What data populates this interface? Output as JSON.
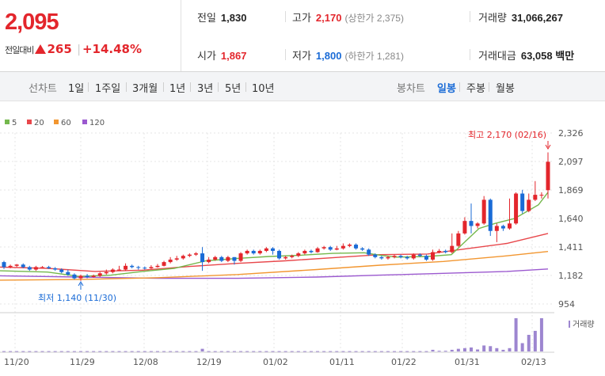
{
  "summary": {
    "price": "2,095",
    "change_label": "전일대비",
    "change_value": "265",
    "change_pct": "+14.48%"
  },
  "stats": {
    "prev_close": {
      "label": "전일",
      "value": "1,830"
    },
    "open": {
      "label": "시가",
      "value": "1,867"
    },
    "high": {
      "label": "고가",
      "value": "2,170",
      "sub": "(상한가 2,375)"
    },
    "low": {
      "label": "저가",
      "value": "1,800",
      "sub": "(하한가 1,281)"
    },
    "volume": {
      "label": "거래량",
      "value": "31,066,267"
    },
    "amount": {
      "label": "거래대금",
      "value": "63,058",
      "unit": "백만"
    }
  },
  "tabs": {
    "line_label": "선차트",
    "line_periods": [
      "1일",
      "1주일",
      "3개월",
      "1년",
      "3년",
      "5년",
      "10년"
    ],
    "candle_label": "봉차트",
    "candle_periods": [
      "일봉",
      "주봉",
      "월봉"
    ],
    "selected": "일봉"
  },
  "colors": {
    "up": "#e3262c",
    "down": "#1a6bd6",
    "ma5": "#74b84c",
    "ma20": "#e8474b",
    "ma60": "#f29630",
    "ma120": "#9b59cf",
    "volume": "#9d86d0"
  },
  "chart_data": {
    "type": "candlestick",
    "legend": [
      "5",
      "20",
      "60",
      "120"
    ],
    "y_ticks": [
      "2,326",
      "2,097",
      "1,869",
      "1,640",
      "1,411",
      "1,182",
      "954"
    ],
    "ylim": [
      954,
      2326
    ],
    "x_ticks": [
      "11/20",
      "11/29",
      "12/08",
      "12/19",
      "01/02",
      "01/11",
      "01/22",
      "01/31",
      "02/13"
    ],
    "annotations": {
      "high": "최고 2,170 (02/16)",
      "low": "최저 1,140 (11/30)"
    },
    "volume_label": "거래량",
    "candles": [
      [
        1290,
        1250,
        1235,
        1300
      ],
      [
        1250,
        1260,
        1240,
        1270
      ],
      [
        1260,
        1270,
        1250,
        1275
      ],
      [
        1270,
        1250,
        1240,
        1280
      ],
      [
        1250,
        1230,
        1220,
        1260
      ],
      [
        1230,
        1250,
        1220,
        1260
      ],
      [
        1250,
        1250,
        1245,
        1258
      ],
      [
        1250,
        1240,
        1235,
        1260
      ],
      [
        1240,
        1230,
        1220,
        1250
      ],
      [
        1230,
        1210,
        1200,
        1240
      ],
      [
        1210,
        1190,
        1180,
        1230
      ],
      [
        1190,
        1160,
        1150,
        1200
      ],
      [
        1160,
        1180,
        1140,
        1190
      ],
      [
        1180,
        1170,
        1160,
        1195
      ],
      [
        1170,
        1180,
        1165,
        1190
      ],
      [
        1180,
        1200,
        1170,
        1210
      ],
      [
        1200,
        1210,
        1190,
        1230
      ],
      [
        1210,
        1230,
        1200,
        1240
      ],
      [
        1230,
        1230,
        1220,
        1260
      ],
      [
        1230,
        1260,
        1220,
        1280
      ],
      [
        1260,
        1250,
        1240,
        1270
      ],
      [
        1250,
        1245,
        1230,
        1260
      ],
      [
        1245,
        1240,
        1230,
        1255
      ],
      [
        1240,
        1250,
        1235,
        1265
      ],
      [
        1250,
        1260,
        1245,
        1275
      ],
      [
        1260,
        1290,
        1255,
        1300
      ],
      [
        1290,
        1310,
        1280,
        1330
      ],
      [
        1310,
        1320,
        1300,
        1340
      ],
      [
        1320,
        1340,
        1310,
        1350
      ],
      [
        1340,
        1350,
        1330,
        1360
      ],
      [
        1350,
        1360,
        1340,
        1370
      ],
      [
        1360,
        1290,
        1220,
        1410
      ],
      [
        1290,
        1310,
        1280,
        1330
      ],
      [
        1310,
        1330,
        1300,
        1340
      ],
      [
        1330,
        1300,
        1290,
        1340
      ],
      [
        1300,
        1330,
        1290,
        1340
      ],
      [
        1330,
        1300,
        1270,
        1330
      ],
      [
        1300,
        1360,
        1290,
        1370
      ],
      [
        1360,
        1380,
        1350,
        1390
      ],
      [
        1380,
        1360,
        1350,
        1390
      ],
      [
        1360,
        1380,
        1350,
        1390
      ],
      [
        1380,
        1400,
        1370,
        1410
      ],
      [
        1400,
        1380,
        1350,
        1410
      ],
      [
        1380,
        1320,
        1310,
        1390
      ],
      [
        1320,
        1330,
        1310,
        1340
      ],
      [
        1330,
        1340,
        1320,
        1350
      ],
      [
        1340,
        1360,
        1330,
        1370
      ],
      [
        1360,
        1380,
        1350,
        1390
      ],
      [
        1380,
        1370,
        1360,
        1390
      ],
      [
        1370,
        1400,
        1365,
        1410
      ],
      [
        1400,
        1410,
        1390,
        1420
      ],
      [
        1410,
        1390,
        1380,
        1420
      ],
      [
        1390,
        1400,
        1385,
        1420
      ],
      [
        1400,
        1420,
        1390,
        1440
      ],
      [
        1420,
        1430,
        1410,
        1440
      ],
      [
        1430,
        1400,
        1390,
        1440
      ],
      [
        1400,
        1390,
        1380,
        1410
      ],
      [
        1390,
        1350,
        1340,
        1400
      ],
      [
        1350,
        1330,
        1320,
        1360
      ],
      [
        1330,
        1320,
        1310,
        1340
      ],
      [
        1320,
        1330,
        1310,
        1340
      ],
      [
        1330,
        1340,
        1320,
        1350
      ],
      [
        1340,
        1330,
        1320,
        1350
      ],
      [
        1330,
        1320,
        1310,
        1340
      ],
      [
        1320,
        1350,
        1310,
        1360
      ],
      [
        1350,
        1340,
        1330,
        1360
      ],
      [
        1340,
        1310,
        1300,
        1350
      ],
      [
        1310,
        1370,
        1300,
        1390
      ],
      [
        1370,
        1380,
        1360,
        1395
      ],
      [
        1380,
        1370,
        1360,
        1390
      ],
      [
        1370,
        1420,
        1360,
        1520
      ],
      [
        1420,
        1520,
        1410,
        1540
      ],
      [
        1520,
        1620,
        1510,
        1650
      ],
      [
        1620,
        1580,
        1520,
        1760
      ],
      [
        1580,
        1600,
        1560,
        1610
      ],
      [
        1600,
        1790,
        1590,
        1820
      ],
      [
        1790,
        1540,
        1500,
        1800
      ],
      [
        1540,
        1580,
        1450,
        1600
      ],
      [
        1580,
        1560,
        1540,
        1590
      ],
      [
        1560,
        1600,
        1550,
        1800
      ],
      [
        1600,
        1840,
        1590,
        1850
      ],
      [
        1840,
        1700,
        1680,
        1870
      ],
      [
        1700,
        1790,
        1690,
        1840
      ],
      [
        1790,
        1830,
        1780,
        1940
      ],
      [
        1830,
        1830,
        1800,
        1850
      ],
      [
        1867,
        2095,
        1800,
        2170
      ]
    ],
    "ma5": [
      [
        0,
        1220
      ],
      [
        60,
        1210
      ],
      [
        100,
        1175
      ],
      [
        140,
        1185
      ],
      [
        180,
        1215
      ],
      [
        220,
        1240
      ],
      [
        260,
        1300
      ],
      [
        300,
        1320
      ],
      [
        340,
        1335
      ],
      [
        380,
        1345
      ],
      [
        420,
        1360
      ],
      [
        460,
        1365
      ],
      [
        480,
        1345
      ],
      [
        500,
        1330
      ],
      [
        540,
        1335
      ],
      [
        570,
        1350
      ],
      [
        585,
        1440
      ],
      [
        605,
        1560
      ],
      [
        625,
        1600
      ],
      [
        650,
        1640
      ],
      [
        680,
        1750
      ],
      [
        692,
        1850
      ]
    ],
    "ma20": [
      [
        0,
        1250
      ],
      [
        60,
        1240
      ],
      [
        120,
        1215
      ],
      [
        180,
        1225
      ],
      [
        240,
        1255
      ],
      [
        300,
        1280
      ],
      [
        360,
        1300
      ],
      [
        420,
        1325
      ],
      [
        480,
        1350
      ],
      [
        540,
        1355
      ],
      [
        580,
        1390
      ],
      [
        640,
        1440
      ],
      [
        692,
        1520
      ]
    ],
    "ma60": [
      [
        0,
        1145
      ],
      [
        100,
        1150
      ],
      [
        200,
        1165
      ],
      [
        300,
        1190
      ],
      [
        400,
        1230
      ],
      [
        480,
        1265
      ],
      [
        560,
        1295
      ],
      [
        640,
        1340
      ],
      [
        692,
        1375
      ]
    ],
    "ma120": [
      [
        0,
        1180
      ],
      [
        100,
        1170
      ],
      [
        200,
        1160
      ],
      [
        300,
        1160
      ],
      [
        400,
        1170
      ],
      [
        480,
        1185
      ],
      [
        560,
        1200
      ],
      [
        640,
        1215
      ],
      [
        692,
        1235
      ]
    ],
    "volume": [
      1,
      1,
      1,
      1,
      1,
      1,
      1,
      1,
      1,
      1,
      1,
      1,
      1,
      1,
      1,
      1,
      1,
      1,
      1,
      1,
      1,
      1,
      1,
      1,
      1,
      1,
      1,
      1,
      1,
      1,
      1,
      8,
      1,
      1,
      1,
      1,
      1,
      1,
      1,
      1,
      1,
      1,
      1,
      1,
      1,
      1,
      1,
      1,
      1,
      1,
      1,
      1,
      1,
      1,
      1,
      1,
      1,
      1,
      1,
      1,
      1,
      1,
      1,
      1,
      1,
      1,
      1,
      5,
      2,
      2,
      5,
      8,
      10,
      12,
      6,
      18,
      16,
      10,
      5,
      10,
      100,
      25,
      50,
      62,
      100
    ]
  }
}
